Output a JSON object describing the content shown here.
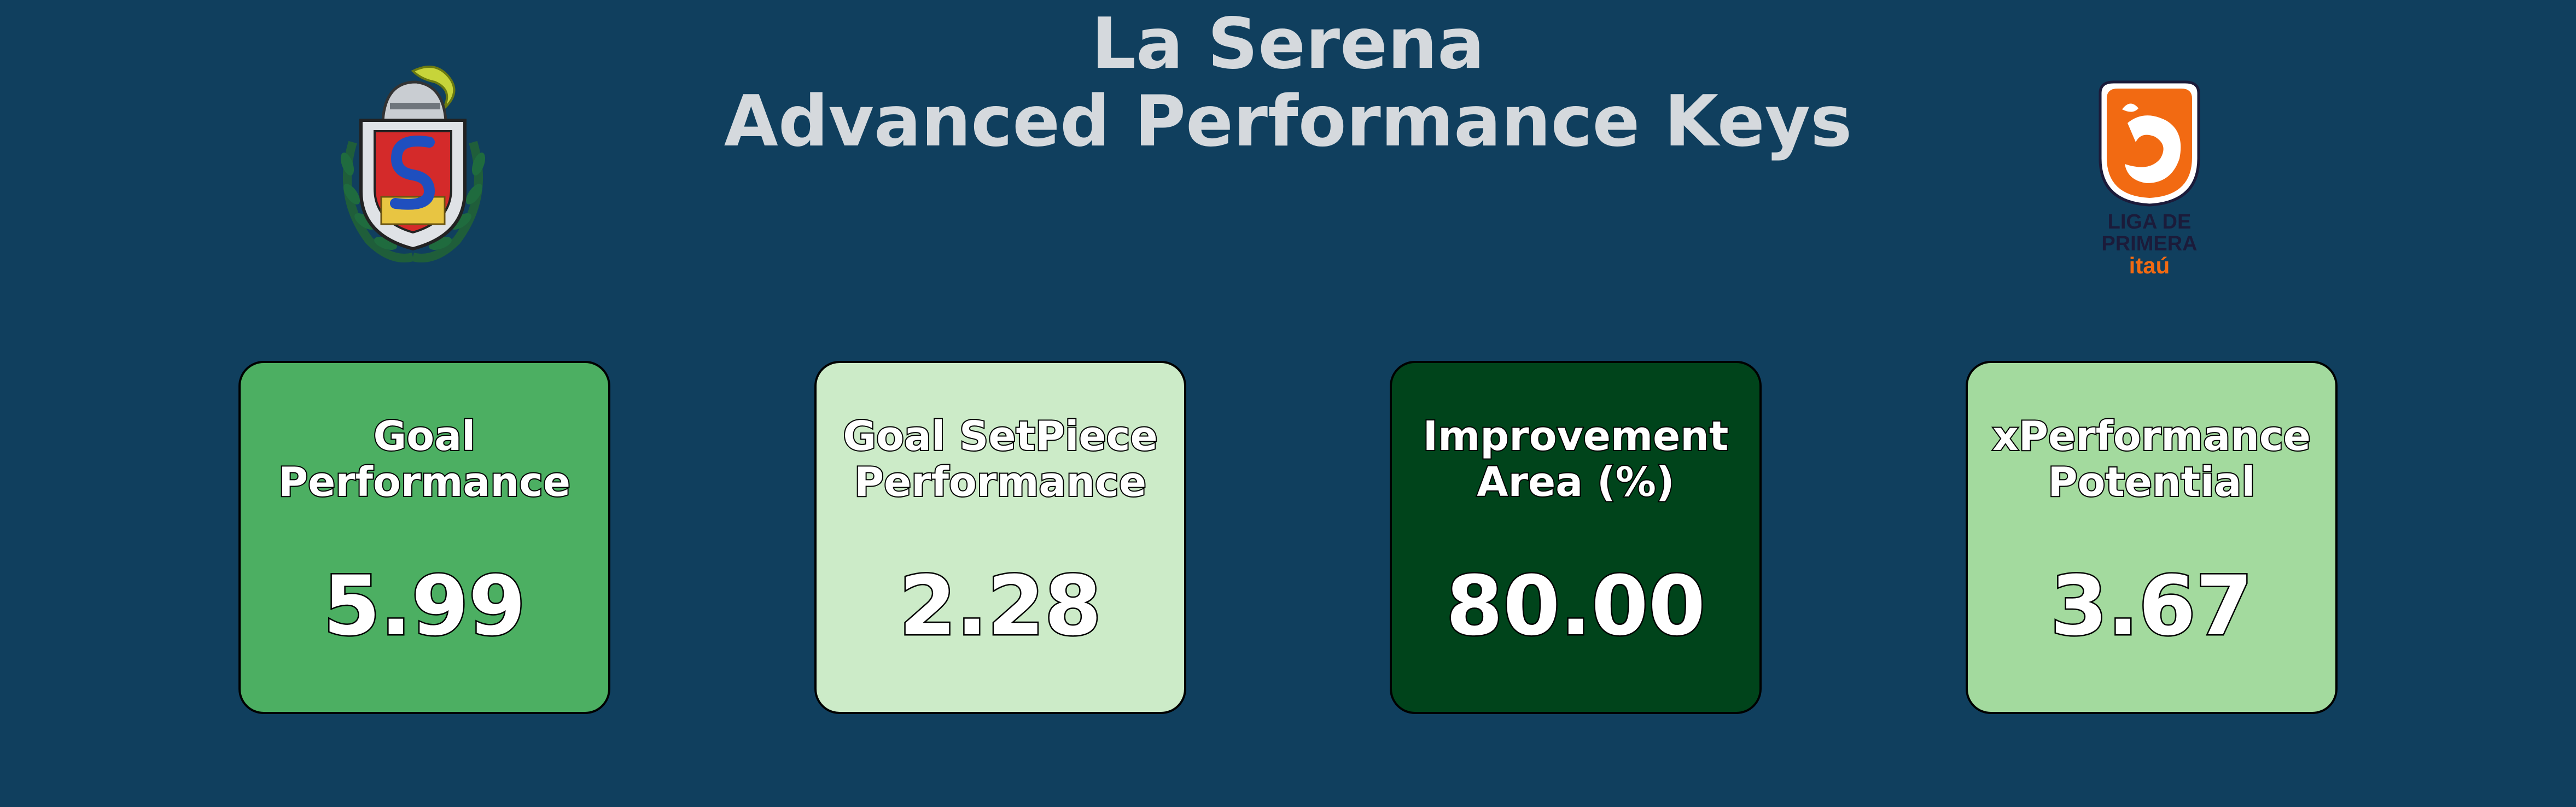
{
  "header": {
    "title_line1": "La Serena",
    "title_line2": "Advanced Performance Keys",
    "title_color": "#d5d9dd",
    "background_color": "#103f5e"
  },
  "logos": {
    "club_icon": "knight-helmet-crest-icon",
    "league_icon": "liga-de-primera-itau-logo",
    "league_text_line1": "LIGA DE",
    "league_text_line2": "PRIMERA",
    "league_text_line3": "itaú"
  },
  "cards": [
    {
      "label_line1": "Goal",
      "label_line2": "Performance",
      "value": "5.99",
      "color": "#4caf62"
    },
    {
      "label_line1": "Goal SetPiece",
      "label_line2": "Performance",
      "value": "2.28",
      "color": "#ccebc8"
    },
    {
      "label_line1": "Improvement",
      "label_line2": "Area (%)",
      "value": "80.00",
      "color": "#00441b"
    },
    {
      "label_line1": "xPerformance",
      "label_line2": "Potential",
      "value": "3.67",
      "color": "#a3da9e"
    }
  ]
}
